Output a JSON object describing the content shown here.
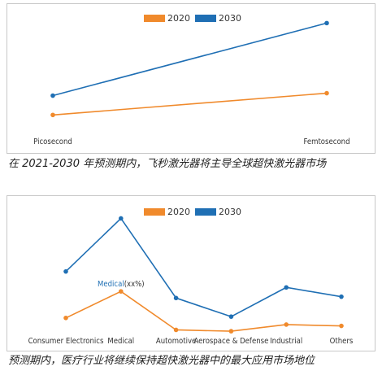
{
  "colors": {
    "series_2020": "#f08a2c",
    "series_2030": "#1f6fb4"
  },
  "chart_data": [
    {
      "type": "line",
      "categories": [
        "Picosecond",
        "Femtosecond"
      ],
      "series": [
        {
          "name": "2020",
          "values": [
            2,
            3.8
          ]
        },
        {
          "name": "2030",
          "values": [
            3.6,
            9.6
          ]
        }
      ],
      "ylim": [
        0,
        10.5
      ],
      "legend": "top-center",
      "grid": false
    },
    {
      "type": "line",
      "categories": [
        "Consumer Electronics",
        "Medical",
        "Automotive",
        "Aerospace & Defense",
        "Industrial",
        "Others"
      ],
      "series": [
        {
          "name": "2020",
          "values": [
            1.3,
            3.3,
            0.4,
            0.3,
            0.8,
            0.7
          ]
        },
        {
          "name": "2030",
          "values": [
            4.8,
            8.8,
            2.8,
            1.4,
            3.6,
            2.9
          ]
        }
      ],
      "ylim": [
        0,
        9.5
      ],
      "legend": "top-center",
      "grid": false,
      "annotation": {
        "label": "Medical",
        "suffix": "(xx%)"
      }
    }
  ],
  "captions": {
    "chart1": "在 2021-2030 年预测期内，飞秒激光器将主导全球超快激光器市场",
    "chart2": "预测期内，医疗行业将继续保持超快激光器中的最大应用市场地位"
  }
}
